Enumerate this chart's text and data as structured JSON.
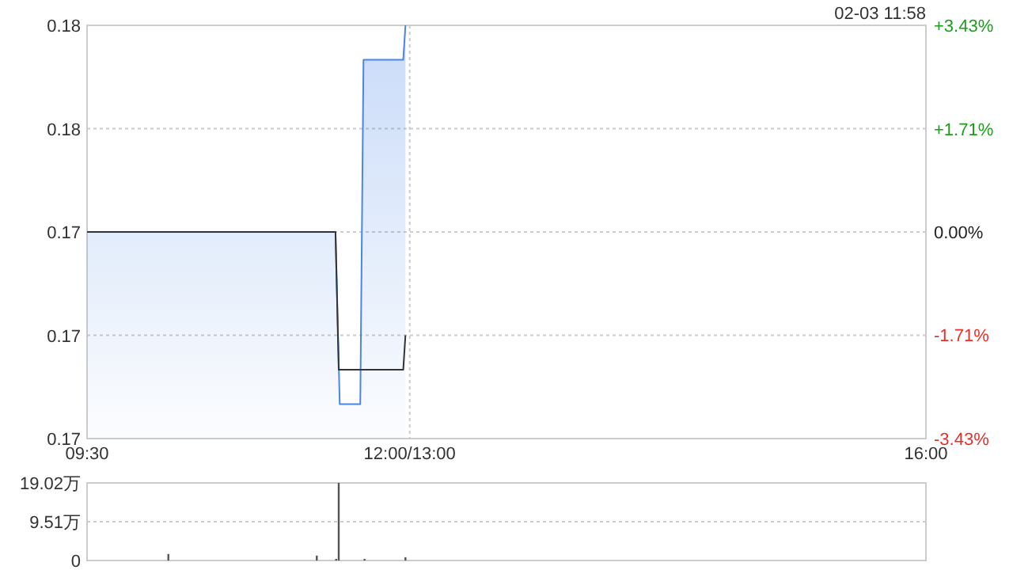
{
  "chart_data": [
    {
      "type": "line",
      "subtitle": "02-03 11:58",
      "grid": true,
      "xlim": [
        9.5,
        16
      ],
      "xticks": [
        {
          "value": 9.5,
          "label": "09:30"
        },
        {
          "value": 12,
          "label": "12:00/13:00"
        },
        {
          "value": 16,
          "label": "16:00"
        }
      ],
      "ylim": [
        0.169,
        0.181
      ],
      "yticks": [
        {
          "value": 0.169,
          "label": "0.17"
        },
        {
          "value": 0.172,
          "label": "0.17"
        },
        {
          "value": 0.175,
          "label": "0.17"
        },
        {
          "value": 0.178,
          "label": "0.18"
        },
        {
          "value": 0.181,
          "label": "0.18"
        }
      ],
      "y2lim": [
        -3.43,
        3.43
      ],
      "y2ticks": [
        {
          "value": -3.43,
          "label": "-3.43%"
        },
        {
          "value": -1.71,
          "label": "-1.71%"
        },
        {
          "value": 0,
          "label": "0.00%"
        },
        {
          "value": 1.71,
          "label": "+1.71%"
        },
        {
          "value": 3.43,
          "label": "+3.43%"
        }
      ],
      "series": [
        {
          "type": "area",
          "color": "#4a86e8",
          "x": [
            9.5,
            11.425,
            11.458,
            11.617,
            11.642,
            11.95,
            11.967
          ],
          "values": [
            0.175,
            0.175,
            0.17,
            0.17,
            0.18,
            0.18,
            0.181
          ]
        },
        {
          "type": "line",
          "color": "#333333",
          "x": [
            9.5,
            11.425,
            11.45,
            11.95,
            11.967
          ],
          "values": [
            0.175,
            0.175,
            0.171,
            0.171,
            0.172
          ]
        }
      ]
    },
    {
      "type": "bar",
      "grid": "y",
      "tick_labels": "y",
      "color": "#555555",
      "xlim": [
        9.5,
        16
      ],
      "ylim": [
        0,
        19.02
      ],
      "yticks": [
        0,
        {
          "value": 9.51,
          "label": "9.51万"
        },
        {
          "value": 19.02,
          "label": "19.02万"
        }
      ],
      "x": [
        10.13,
        11.28,
        11.43,
        11.45,
        11.65,
        11.967
      ],
      "values": [
        1.6,
        1.2,
        0.4,
        19.02,
        0.4,
        0.8
      ]
    }
  ]
}
